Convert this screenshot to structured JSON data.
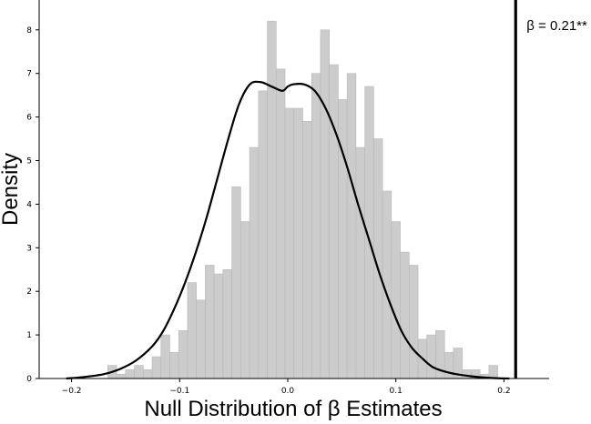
{
  "chart_data": {
    "type": "bar",
    "subtype": "histogram-with-kde",
    "title": "",
    "xlabel": "Null Distribution of β Estimates",
    "ylabel": "Density",
    "xlim": [
      -0.22,
      0.22
    ],
    "ylim": [
      0,
      8.6
    ],
    "xticks": [
      -0.2,
      -0.1,
      0.0,
      0.1,
      0.2
    ],
    "xtick_labels": [
      "−0.2",
      "−0.1",
      "0.0",
      "0.1",
      "0.2"
    ],
    "yticks": [
      0,
      1,
      2,
      3,
      4,
      5,
      6,
      7,
      8
    ],
    "ytick_labels": [
      "0",
      "1",
      "2",
      "3",
      "4",
      "5",
      "6",
      "7",
      "8"
    ],
    "grid": false,
    "histogram": {
      "color": "#cccccc",
      "edge_color": "#b8b8b8",
      "bin_edges_start": -0.1665,
      "bin_width": 0.0082,
      "densities": [
        0.3,
        0.1,
        0.2,
        0.3,
        0.2,
        0.5,
        1.0,
        0.6,
        1.1,
        2.2,
        1.8,
        2.6,
        2.4,
        2.5,
        4.4,
        3.6,
        5.3,
        6.6,
        8.2,
        7.1,
        6.2,
        6.2,
        5.9,
        7.0,
        8.0,
        7.2,
        6.4,
        7.0,
        5.3,
        6.7,
        5.5,
        4.3,
        3.6,
        2.9,
        2.6,
        0.9,
        1.0,
        1.1,
        0.6,
        0.7,
        0.2,
        0.2,
        0.1,
        0.3
      ]
    },
    "kde": {
      "color": "#000000",
      "x": [
        -0.205,
        -0.19,
        -0.17,
        -0.155,
        -0.14,
        -0.125,
        -0.115,
        -0.105,
        -0.095,
        -0.085,
        -0.075,
        -0.065,
        -0.055,
        -0.045,
        -0.035,
        -0.025,
        -0.015,
        -0.005,
        0.0,
        0.005,
        0.015,
        0.025,
        0.035,
        0.045,
        0.055,
        0.065,
        0.075,
        0.085,
        0.095,
        0.105,
        0.115,
        0.125,
        0.135,
        0.15,
        0.17,
        0.19,
        0.205
      ],
      "y": [
        0.0,
        0.03,
        0.1,
        0.22,
        0.42,
        0.75,
        1.1,
        1.6,
        2.2,
        2.9,
        3.7,
        4.6,
        5.5,
        6.3,
        6.75,
        6.8,
        6.7,
        6.6,
        6.7,
        6.75,
        6.75,
        6.6,
        6.2,
        5.6,
        4.85,
        4.0,
        3.2,
        2.4,
        1.7,
        1.1,
        0.7,
        0.45,
        0.25,
        0.13,
        0.05,
        0.01,
        0.0
      ]
    },
    "reference_line": {
      "x": 0.21,
      "color": "#000000",
      "label": "β = 0.21**"
    }
  }
}
